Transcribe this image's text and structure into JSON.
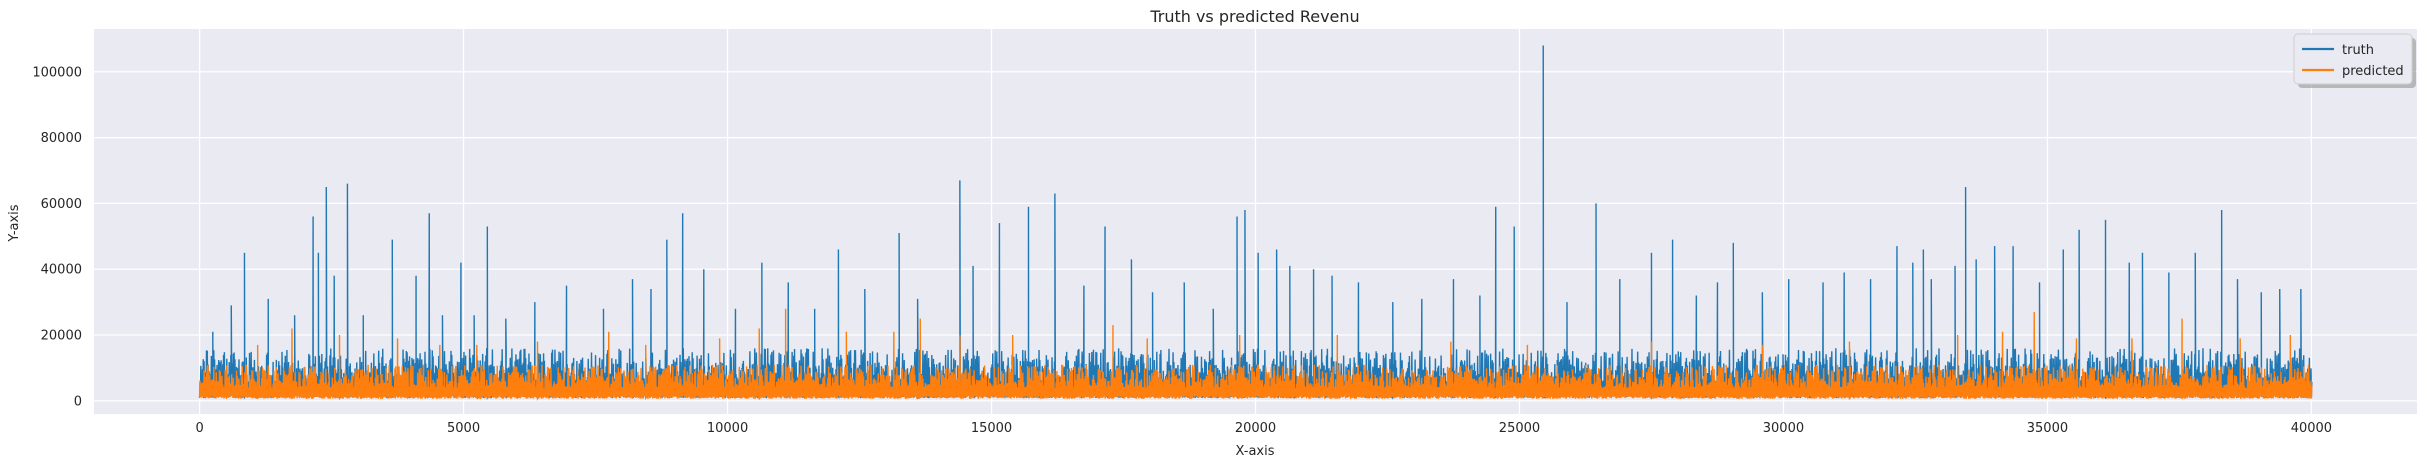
{
  "chart_data": {
    "type": "line",
    "title": "Truth vs predicted Revenu",
    "xlabel": "X-axis",
    "ylabel": "Y-axis",
    "xlim": [
      -2000,
      42000
    ],
    "ylim": [
      -4000,
      113000
    ],
    "x_ticks": [
      0,
      5000,
      10000,
      15000,
      20000,
      25000,
      30000,
      35000,
      40000
    ],
    "y_ticks": [
      0,
      20000,
      40000,
      60000,
      80000,
      100000
    ],
    "x_tick_labels": [
      "0",
      "5000",
      "10000",
      "15000",
      "20000",
      "25000",
      "30000",
      "35000",
      "40000"
    ],
    "y_tick_labels": [
      "0",
      "20000",
      "40000",
      "60000",
      "80000",
      "100000"
    ],
    "grid": true,
    "legend_position": "top-right",
    "x_range": [
      0,
      40000
    ],
    "series": [
      {
        "name": "truth",
        "color": "#1f77b4",
        "baseline_range": [
          2000,
          16000
        ],
        "peaks": [
          [
            250,
            21000
          ],
          [
            600,
            29000
          ],
          [
            850,
            45000
          ],
          [
            1300,
            31000
          ],
          [
            1800,
            26000
          ],
          [
            2150,
            56000
          ],
          [
            2250,
            45000
          ],
          [
            2400,
            65000
          ],
          [
            2550,
            38000
          ],
          [
            2800,
            66000
          ],
          [
            3100,
            26000
          ],
          [
            3650,
            49000
          ],
          [
            4100,
            38000
          ],
          [
            4350,
            57000
          ],
          [
            4600,
            26000
          ],
          [
            4950,
            42000
          ],
          [
            5200,
            26000
          ],
          [
            5450,
            53000
          ],
          [
            5800,
            25000
          ],
          [
            6350,
            30000
          ],
          [
            6950,
            35000
          ],
          [
            7650,
            28000
          ],
          [
            8200,
            37000
          ],
          [
            8550,
            34000
          ],
          [
            8850,
            49000
          ],
          [
            9150,
            57000
          ],
          [
            9550,
            40000
          ],
          [
            10150,
            28000
          ],
          [
            10650,
            42000
          ],
          [
            11150,
            36000
          ],
          [
            11650,
            28000
          ],
          [
            12100,
            46000
          ],
          [
            12600,
            34000
          ],
          [
            13250,
            51000
          ],
          [
            13600,
            31000
          ],
          [
            14400,
            67000
          ],
          [
            14650,
            41000
          ],
          [
            15150,
            54000
          ],
          [
            15700,
            59000
          ],
          [
            16200,
            63000
          ],
          [
            16750,
            35000
          ],
          [
            17150,
            53000
          ],
          [
            17650,
            43000
          ],
          [
            18050,
            33000
          ],
          [
            18650,
            36000
          ],
          [
            19200,
            28000
          ],
          [
            19650,
            56000
          ],
          [
            19800,
            58000
          ],
          [
            20050,
            45000
          ],
          [
            20400,
            46000
          ],
          [
            20650,
            41000
          ],
          [
            21100,
            40000
          ],
          [
            21450,
            38000
          ],
          [
            21950,
            36000
          ],
          [
            22600,
            30000
          ],
          [
            23150,
            31000
          ],
          [
            23750,
            37000
          ],
          [
            24250,
            32000
          ],
          [
            24550,
            59000
          ],
          [
            24900,
            53000
          ],
          [
            25450,
            108000
          ],
          [
            25900,
            30000
          ],
          [
            26450,
            60000
          ],
          [
            26900,
            37000
          ],
          [
            27500,
            45000
          ],
          [
            27900,
            49000
          ],
          [
            28350,
            32000
          ],
          [
            28750,
            36000
          ],
          [
            29050,
            48000
          ],
          [
            29600,
            33000
          ],
          [
            30100,
            37000
          ],
          [
            30750,
            36000
          ],
          [
            31150,
            39000
          ],
          [
            31650,
            37000
          ],
          [
            32150,
            47000
          ],
          [
            32450,
            42000
          ],
          [
            32650,
            46000
          ],
          [
            32800,
            37000
          ],
          [
            33250,
            41000
          ],
          [
            33450,
            65000
          ],
          [
            33650,
            43000
          ],
          [
            34000,
            47000
          ],
          [
            34350,
            47000
          ],
          [
            34850,
            36000
          ],
          [
            35300,
            46000
          ],
          [
            35600,
            52000
          ],
          [
            36100,
            55000
          ],
          [
            36550,
            42000
          ],
          [
            36800,
            45000
          ],
          [
            37300,
            39000
          ],
          [
            37800,
            45000
          ],
          [
            38300,
            58000
          ],
          [
            38600,
            37000
          ],
          [
            39050,
            33000
          ],
          [
            39400,
            34000
          ],
          [
            39800,
            34000
          ]
        ]
      },
      {
        "name": "predicted",
        "color": "#ff7f0e",
        "baseline_range": [
          1500,
          11000
        ],
        "peaks": [
          [
            1100,
            17000
          ],
          [
            1750,
            22000
          ],
          [
            2650,
            20000
          ],
          [
            3750,
            19000
          ],
          [
            4550,
            17000
          ],
          [
            5250,
            17000
          ],
          [
            6400,
            18000
          ],
          [
            7750,
            21000
          ],
          [
            8450,
            17000
          ],
          [
            9850,
            19000
          ],
          [
            10600,
            22000
          ],
          [
            11100,
            28000
          ],
          [
            12250,
            21000
          ],
          [
            13150,
            21000
          ],
          [
            13650,
            25000
          ],
          [
            14400,
            20000
          ],
          [
            15400,
            20000
          ],
          [
            17300,
            23000
          ],
          [
            17950,
            19000
          ],
          [
            19700,
            20000
          ],
          [
            21550,
            20000
          ],
          [
            23700,
            18000
          ],
          [
            25150,
            17000
          ],
          [
            27500,
            18000
          ],
          [
            29600,
            17000
          ],
          [
            31250,
            18000
          ],
          [
            33300,
            20000
          ],
          [
            34150,
            21000
          ],
          [
            34750,
            27000
          ],
          [
            35550,
            19000
          ],
          [
            36600,
            19000
          ],
          [
            37550,
            25000
          ],
          [
            38650,
            19000
          ],
          [
            39600,
            20000
          ]
        ]
      }
    ]
  }
}
